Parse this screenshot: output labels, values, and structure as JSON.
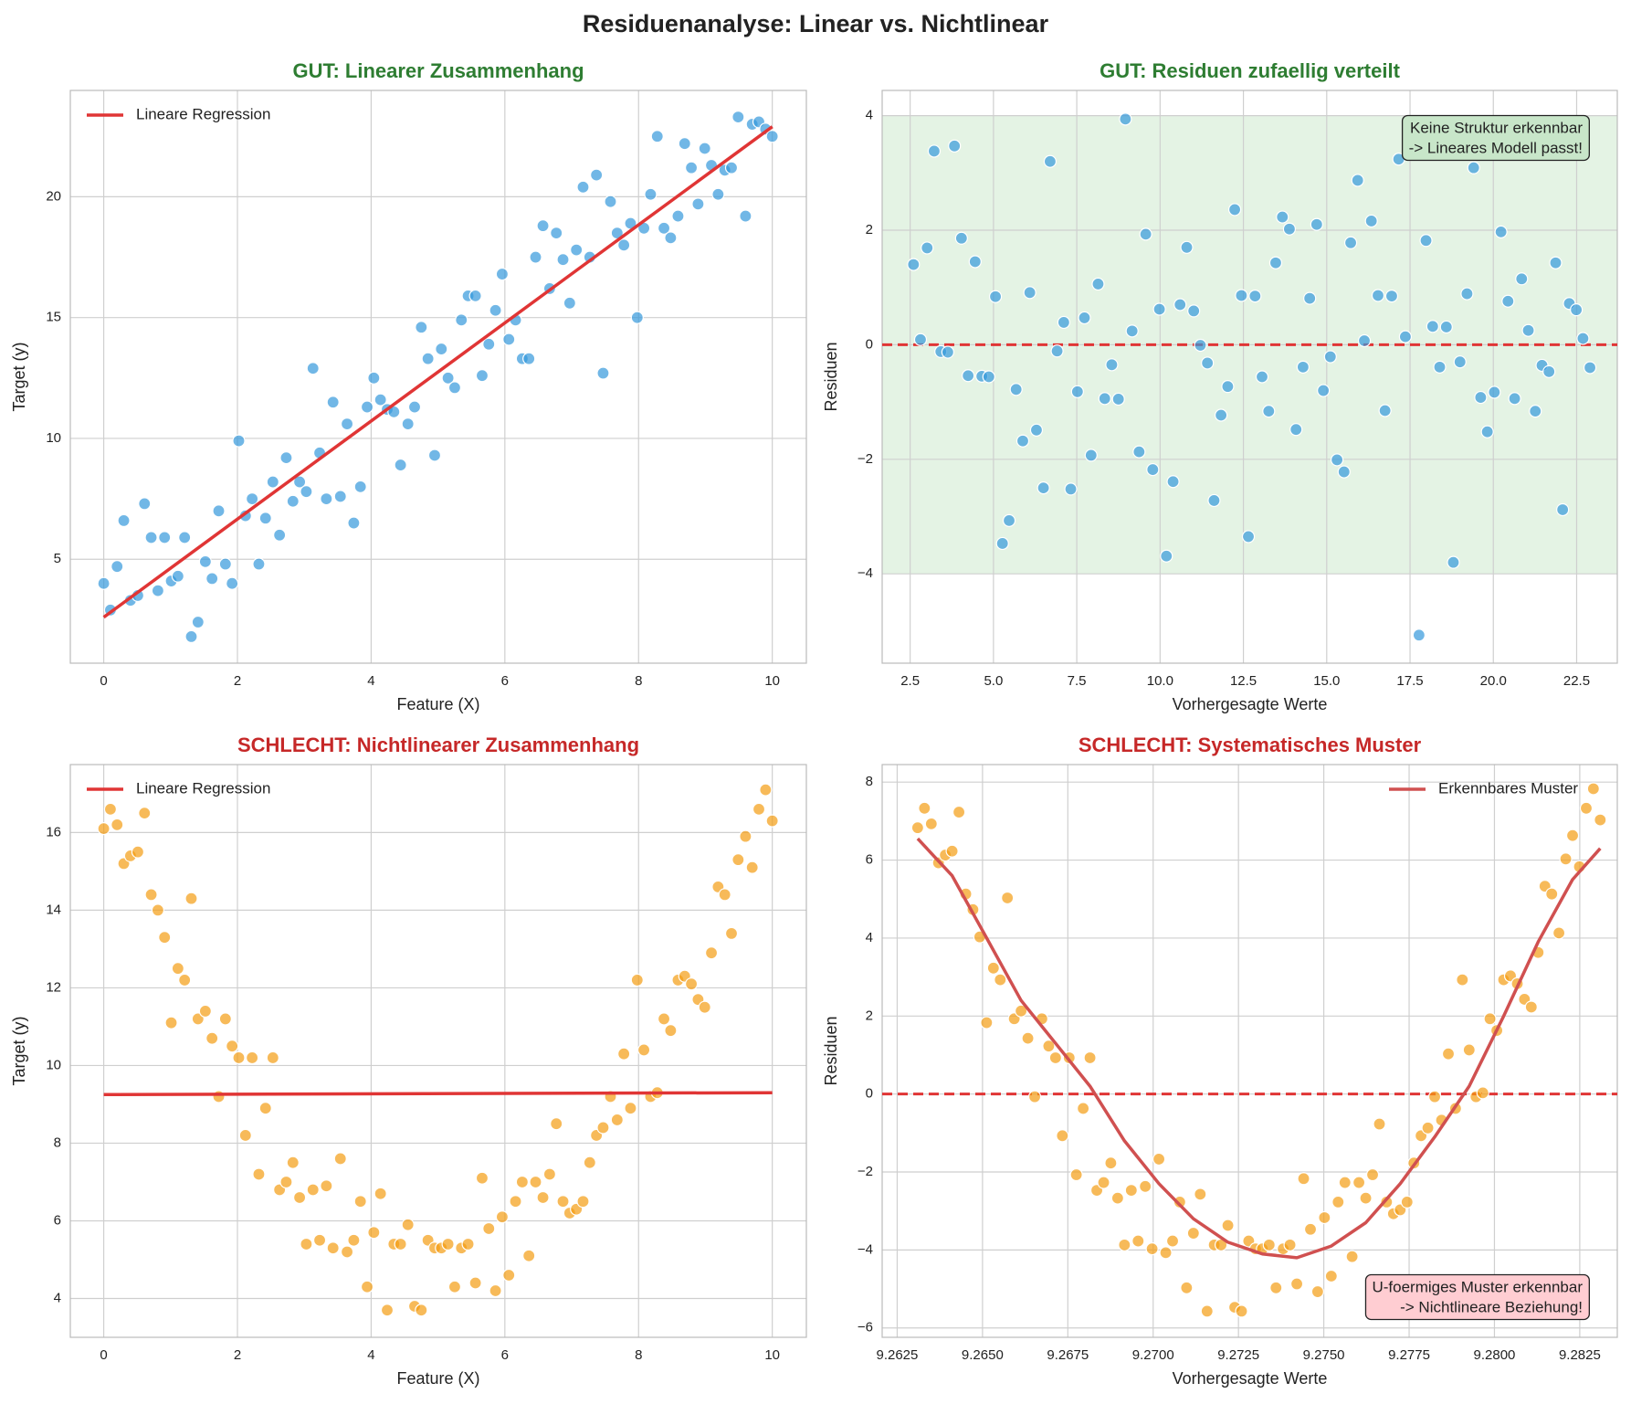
{
  "title": "Residuenanalyse: Linear vs. Nichtlinear",
  "chart_data": [
    {
      "type": "scatter",
      "title": "GUT: Linearer Zusammenhang",
      "title_color": "#2e7d32",
      "xlabel": "Feature (X)",
      "ylabel": "Target (y)",
      "xlim": [
        -0.5,
        10.51
      ],
      "xticks": [
        0,
        2,
        4,
        6,
        8,
        10
      ],
      "ylim": [
        0.7,
        24.4
      ],
      "yticks": [
        5,
        10,
        15,
        20
      ],
      "grid": true,
      "color": "#3498db",
      "legend": "upper left",
      "x": [
        0,
        0.1,
        0.2,
        0.3,
        0.4,
        0.51,
        0.61,
        0.71,
        0.81,
        0.91,
        1.01,
        1.11,
        1.21,
        1.31,
        1.41,
        1.52,
        1.62,
        1.72,
        1.82,
        1.92,
        2.02,
        2.12,
        2.22,
        2.32,
        2.42,
        2.53,
        2.63,
        2.73,
        2.83,
        2.93,
        3.03,
        3.13,
        3.23,
        3.33,
        3.43,
        3.54,
        3.64,
        3.74,
        3.84,
        3.94,
        4.04,
        4.14,
        4.24,
        4.34,
        4.44,
        4.55,
        4.65,
        4.75,
        4.85,
        4.95,
        5.05,
        5.15,
        5.25,
        5.35,
        5.45,
        5.56,
        5.66,
        5.76,
        5.86,
        5.96,
        6.06,
        6.16,
        6.26,
        6.36,
        6.46,
        6.57,
        6.67,
        6.77,
        6.87,
        6.97,
        7.07,
        7.17,
        7.27,
        7.37,
        7.47,
        7.58,
        7.68,
        7.78,
        7.88,
        7.98,
        8.08,
        8.18,
        8.28,
        8.38,
        8.48,
        8.59,
        8.69,
        8.79,
        8.89,
        8.99,
        9.09,
        9.19,
        9.29,
        9.39,
        9.49,
        9.6,
        9.7,
        9.8,
        9.9,
        10.0
      ],
      "values": [
        4.0,
        2.9,
        4.7,
        6.6,
        3.3,
        3.5,
        7.3,
        5.9,
        3.7,
        5.9,
        4.1,
        4.3,
        5.9,
        1.8,
        2.4,
        4.9,
        4.2,
        7.0,
        4.8,
        4.0,
        9.9,
        6.8,
        7.5,
        4.8,
        6.7,
        8.2,
        6.0,
        9.2,
        7.4,
        8.2,
        7.8,
        12.9,
        9.4,
        7.5,
        11.5,
        7.6,
        10.6,
        6.5,
        8.0,
        11.3,
        12.5,
        11.6,
        11.2,
        11.1,
        8.9,
        10.6,
        11.3,
        14.6,
        13.3,
        9.3,
        13.7,
        12.5,
        12.1,
        14.9,
        15.9,
        15.9,
        12.6,
        13.9,
        15.3,
        16.8,
        14.1,
        14.9,
        13.3,
        13.3,
        17.5,
        18.8,
        16.2,
        18.5,
        17.4,
        15.6,
        17.8,
        20.4,
        17.5,
        20.9,
        12.7,
        19.8,
        18.5,
        18.0,
        18.9,
        15.0,
        18.7,
        20.1,
        22.5,
        18.7,
        18.3,
        19.2,
        22.2,
        21.2,
        19.7,
        22.0,
        21.3,
        20.1,
        21.1,
        21.2,
        23.3,
        19.2,
        23.0,
        23.1,
        22.8,
        22.5
      ],
      "lines": [
        {
          "name": "Lineare Regression",
          "color": "#e03535",
          "x": [
            0,
            10
          ],
          "values": [
            2.6,
            22.9
          ]
        }
      ]
    },
    {
      "type": "scatter",
      "title": "GUT: Residuen zufaellig verteilt",
      "title_color": "#2e7d32",
      "xlabel": "Vorhergesagte Werte",
      "ylabel": "Residuen",
      "xlim": [
        1.66,
        23.72
      ],
      "xticks": [
        2.5,
        {
          "value": 5,
          "label": "5.0"
        },
        7.5,
        {
          "value": 10,
          "label": "10.0"
        },
        12.5,
        {
          "value": 15,
          "label": "15.0"
        },
        17.5,
        {
          "value": 20,
          "label": "20.0"
        },
        22.5
      ],
      "ylim": [
        -5.56,
        4.44
      ],
      "yticks": [
        {
          "value": -4,
          "label": "−4"
        },
        {
          "value": -2,
          "label": "−2"
        },
        0,
        2,
        4
      ],
      "grid": true,
      "color": "#3498db",
      "band": [
        -4,
        4
      ],
      "band_color": "#a5d6a7",
      "hline": 0,
      "annotation": [
        "Keine Struktur erkennbar",
        "-> Lineares Modell passt!"
      ],
      "annotation_loc": "upper right",
      "annotation_color": "#c8e6c9",
      "x": [
        2.6,
        2.81,
        3.01,
        3.22,
        3.42,
        3.63,
        3.83,
        4.04,
        4.24,
        4.45,
        4.65,
        4.86,
        5.06,
        5.27,
        5.47,
        5.68,
        5.88,
        6.09,
        6.29,
        6.5,
        6.7,
        6.91,
        7.11,
        7.32,
        7.52,
        7.73,
        7.93,
        8.14,
        8.34,
        8.55,
        8.75,
        8.96,
        9.16,
        9.37,
        9.57,
        9.78,
        9.98,
        10.19,
        10.39,
        10.6,
        10.8,
        11.01,
        11.21,
        11.42,
        11.62,
        11.83,
        12.03,
        12.24,
        12.44,
        12.65,
        12.85,
        13.06,
        13.26,
        13.47,
        13.67,
        13.88,
        14.08,
        14.29,
        14.49,
        14.7,
        14.9,
        15.11,
        15.31,
        15.52,
        15.72,
        15.93,
        16.13,
        16.34,
        16.54,
        16.75,
        16.95,
        17.16,
        17.36,
        17.57,
        17.77,
        17.98,
        18.18,
        18.39,
        18.59,
        18.8,
        19.0,
        19.21,
        19.41,
        19.62,
        19.82,
        20.03,
        20.23,
        20.44,
        20.64,
        20.85,
        21.05,
        21.26,
        21.46,
        21.67,
        21.87,
        22.08,
        22.28,
        22.49,
        22.69,
        22.9
      ],
      "values": [
        1.4,
        0.09,
        1.69,
        3.38,
        -0.12,
        -0.13,
        3.47,
        1.86,
        -0.54,
        1.45,
        -0.55,
        -0.56,
        0.84,
        -3.47,
        -3.07,
        -0.78,
        -1.68,
        0.91,
        -1.49,
        -2.5,
        3.2,
        -0.11,
        0.39,
        -2.52,
        -0.82,
        0.47,
        -1.93,
        1.06,
        -0.94,
        -0.35,
        -0.95,
        3.94,
        0.24,
        -1.87,
        1.93,
        -2.18,
        0.62,
        -3.69,
        -2.39,
        0.7,
        1.7,
        0.59,
        -0.01,
        -0.32,
        -2.72,
        -1.23,
        -0.73,
        2.36,
        0.86,
        -3.35,
        0.85,
        -0.56,
        -1.16,
        1.43,
        2.23,
        2.02,
        -1.48,
        -0.39,
        0.81,
        2.1,
        -0.8,
        -0.21,
        -2.01,
        -2.22,
        1.78,
        2.87,
        0.07,
        2.16,
        0.86,
        -1.15,
        0.85,
        3.24,
        0.14,
        3.33,
        -5.07,
        1.82,
        0.32,
        -0.39,
        0.31,
        -3.8,
        -0.3,
        0.89,
        3.09,
        -0.92,
        -1.52,
        -0.83,
        1.97,
        0.76,
        -0.94,
        1.15,
        0.25,
        -1.16,
        -0.36,
        -0.47,
        1.43,
        -2.88,
        0.72,
        0.61,
        0.11,
        -0.4
      ],
      "hline_color": "#e03535"
    },
    {
      "type": "scatter",
      "title": "SCHLECHT: Nichtlinearer Zusammenhang",
      "title_color": "#c62828",
      "xlabel": "Feature (X)",
      "ylabel": "Target (y)",
      "xlim": [
        -0.5,
        10.51
      ],
      "xticks": [
        0,
        2,
        4,
        6,
        8,
        10
      ],
      "ylim": [
        3.0,
        17.75
      ],
      "yticks": [
        4,
        6,
        8,
        10,
        12,
        14,
        16
      ],
      "grid": true,
      "color": "#f39c12",
      "legend": "upper left",
      "x": [
        0,
        0.1,
        0.2,
        0.3,
        0.4,
        0.51,
        0.61,
        0.71,
        0.81,
        0.91,
        1.01,
        1.11,
        1.21,
        1.31,
        1.41,
        1.52,
        1.62,
        1.72,
        1.82,
        1.92,
        2.02,
        2.12,
        2.22,
        2.32,
        2.42,
        2.53,
        2.63,
        2.73,
        2.83,
        2.93,
        3.03,
        3.13,
        3.23,
        3.33,
        3.43,
        3.54,
        3.64,
        3.74,
        3.84,
        3.94,
        4.04,
        4.14,
        4.24,
        4.34,
        4.44,
        4.55,
        4.65,
        4.75,
        4.85,
        4.95,
        5.05,
        5.15,
        5.25,
        5.35,
        5.45,
        5.56,
        5.66,
        5.76,
        5.86,
        5.96,
        6.06,
        6.16,
        6.26,
        6.36,
        6.46,
        6.57,
        6.67,
        6.77,
        6.87,
        6.97,
        7.07,
        7.17,
        7.27,
        7.37,
        7.47,
        7.58,
        7.68,
        7.78,
        7.88,
        7.98,
        8.08,
        8.18,
        8.28,
        8.38,
        8.48,
        8.59,
        8.69,
        8.79,
        8.89,
        8.99,
        9.09,
        9.19,
        9.29,
        9.39,
        9.49,
        9.6,
        9.7,
        9.8,
        9.9,
        10.0
      ],
      "values": [
        16.1,
        16.6,
        16.2,
        15.2,
        15.4,
        15.5,
        16.5,
        14.4,
        14.0,
        13.3,
        11.1,
        12.5,
        12.2,
        14.3,
        11.2,
        11.4,
        10.7,
        9.2,
        11.2,
        10.5,
        10.2,
        8.2,
        10.2,
        7.2,
        8.9,
        10.2,
        6.8,
        7.0,
        7.5,
        6.6,
        5.4,
        6.8,
        5.5,
        6.9,
        5.3,
        7.6,
        5.2,
        5.5,
        6.5,
        4.3,
        5.7,
        6.7,
        3.7,
        5.4,
        5.4,
        5.9,
        3.8,
        3.7,
        5.5,
        5.3,
        5.3,
        5.4,
        4.3,
        5.3,
        5.4,
        4.4,
        7.1,
        5.8,
        4.2,
        6.1,
        4.6,
        6.5,
        7.0,
        5.1,
        7.0,
        6.6,
        7.2,
        8.5,
        6.5,
        6.2,
        6.3,
        6.5,
        7.5,
        8.2,
        8.4,
        9.2,
        8.6,
        10.3,
        8.9,
        12.2,
        10.4,
        9.2,
        9.3,
        11.2,
        10.9,
        12.2,
        12.3,
        12.1,
        11.7,
        11.5,
        12.9,
        14.6,
        14.4,
        13.4,
        15.3,
        15.9,
        15.1,
        16.6,
        17.1,
        16.3
      ],
      "lines": [
        {
          "name": "Lineare Regression",
          "color": "#e03535",
          "x": [
            0,
            10
          ],
          "values": [
            9.25,
            9.3
          ]
        }
      ]
    },
    {
      "type": "scatter",
      "title": "SCHLECHT: Systematisches Muster",
      "title_color": "#c62828",
      "xlabel": "Vorhergesagte Werte",
      "ylabel": "Residuen",
      "xlim": [
        9.26206,
        9.2836
      ],
      "xticks": [
        9.2625,
        {
          "value": 9.265,
          "label": "9.2650"
        },
        9.2675,
        {
          "value": 9.27,
          "label": "9.2700"
        },
        9.2725,
        {
          "value": 9.275,
          "label": "9.2750"
        },
        9.2775,
        {
          "value": 9.28,
          "label": "9.2800"
        },
        9.2825
      ],
      "ylim": [
        -6.24,
        8.45
      ],
      "yticks": [
        {
          "value": -6,
          "label": "−6"
        },
        {
          "value": -4,
          "label": "−4"
        },
        {
          "value": -2,
          "label": "−2"
        },
        0,
        2,
        4,
        6,
        8
      ],
      "grid": true,
      "color": "#f39c12",
      "legend": "upper right",
      "hline": 0,
      "hline_color": "#e03535",
      "annotation": [
        "U-foermiges Muster erkennbar",
        "-> Nichtlineare Beziehung!"
      ],
      "annotation_loc": "lower right",
      "annotation_color": "#ffcdd2",
      "x": [
        9.2631,
        9.2633,
        9.2635,
        9.26371,
        9.26391,
        9.26411,
        9.26431,
        9.26451,
        9.26472,
        9.26492,
        9.26512,
        9.26532,
        9.26552,
        9.26573,
        9.26593,
        9.26613,
        9.26633,
        9.26653,
        9.26674,
        9.26694,
        9.26714,
        9.26734,
        9.26754,
        9.26775,
        9.26795,
        9.26815,
        9.26835,
        9.26855,
        9.26876,
        9.26896,
        9.26916,
        9.26936,
        9.26956,
        9.26977,
        9.26997,
        9.27017,
        9.27037,
        9.27057,
        9.27078,
        9.27098,
        9.27118,
        9.27138,
        9.27158,
        9.27179,
        9.27199,
        9.27219,
        9.27239,
        9.27259,
        9.2728,
        9.273,
        9.2732,
        9.2734,
        9.2736,
        9.27381,
        9.27401,
        9.27421,
        9.27441,
        9.27461,
        9.27482,
        9.27502,
        9.27522,
        9.27542,
        9.27562,
        9.27583,
        9.27603,
        9.27623,
        9.27643,
        9.27663,
        9.27684,
        9.27704,
        9.27724,
        9.27744,
        9.27764,
        9.27785,
        9.27805,
        9.27825,
        9.27845,
        9.27865,
        9.27886,
        9.27906,
        9.27926,
        9.27946,
        9.27966,
        9.27987,
        9.28007,
        9.28027,
        9.28047,
        9.28067,
        9.28088,
        9.28108,
        9.28128,
        9.28148,
        9.28168,
        9.28189,
        9.28209,
        9.28229,
        9.28249,
        9.28269,
        9.2829,
        9.2831
      ],
      "values": [
        6.83,
        7.33,
        6.93,
        5.93,
        6.13,
        6.23,
        7.23,
        5.13,
        4.73,
        4.03,
        1.83,
        3.23,
        2.93,
        5.03,
        1.93,
        2.13,
        1.43,
        -0.07,
        1.93,
        1.23,
        0.93,
        -1.07,
        0.93,
        -2.07,
        -0.37,
        0.93,
        -2.47,
        -2.27,
        -1.77,
        -2.67,
        -3.87,
        -2.47,
        -3.77,
        -2.37,
        -3.97,
        -1.67,
        -4.07,
        -3.77,
        -2.77,
        -4.97,
        -3.57,
        -2.57,
        -5.57,
        -3.87,
        -3.87,
        -3.37,
        -5.47,
        -5.57,
        -3.77,
        -3.97,
        -3.97,
        -3.87,
        -4.97,
        -3.97,
        -3.87,
        -4.87,
        -2.17,
        -3.47,
        -5.07,
        -3.17,
        -4.67,
        -2.77,
        -2.27,
        -4.17,
        -2.27,
        -2.67,
        -2.07,
        -0.77,
        -2.77,
        -3.07,
        -2.97,
        -2.77,
        -1.77,
        -1.07,
        -0.87,
        -0.07,
        -0.67,
        1.03,
        -0.37,
        2.93,
        1.13,
        -0.07,
        0.03,
        1.93,
        1.63,
        2.93,
        3.03,
        2.83,
        2.43,
        2.23,
        3.63,
        5.33,
        5.13,
        4.13,
        6.03,
        6.63,
        5.83,
        7.33,
        7.83,
        7.03
      ],
      "lines": [
        {
          "name": "Erkennbares Muster",
          "color": "#d05050",
          "x": [
            9.2631,
            9.26411,
            9.26512,
            9.26613,
            9.26714,
            9.26815,
            9.26916,
            9.27017,
            9.27118,
            9.27219,
            9.2732,
            9.27421,
            9.27522,
            9.27623,
            9.27724,
            9.27825,
            9.27926,
            9.28027,
            9.28128,
            9.28229,
            9.2831
          ],
          "values": [
            6.55,
            5.6,
            4.0,
            2.4,
            1.3,
            0.2,
            -1.2,
            -2.3,
            -3.2,
            -3.8,
            -4.1,
            -4.2,
            -3.9,
            -3.3,
            -2.3,
            -1.1,
            0.2,
            2.0,
            3.9,
            5.5,
            6.3
          ]
        }
      ]
    }
  ]
}
